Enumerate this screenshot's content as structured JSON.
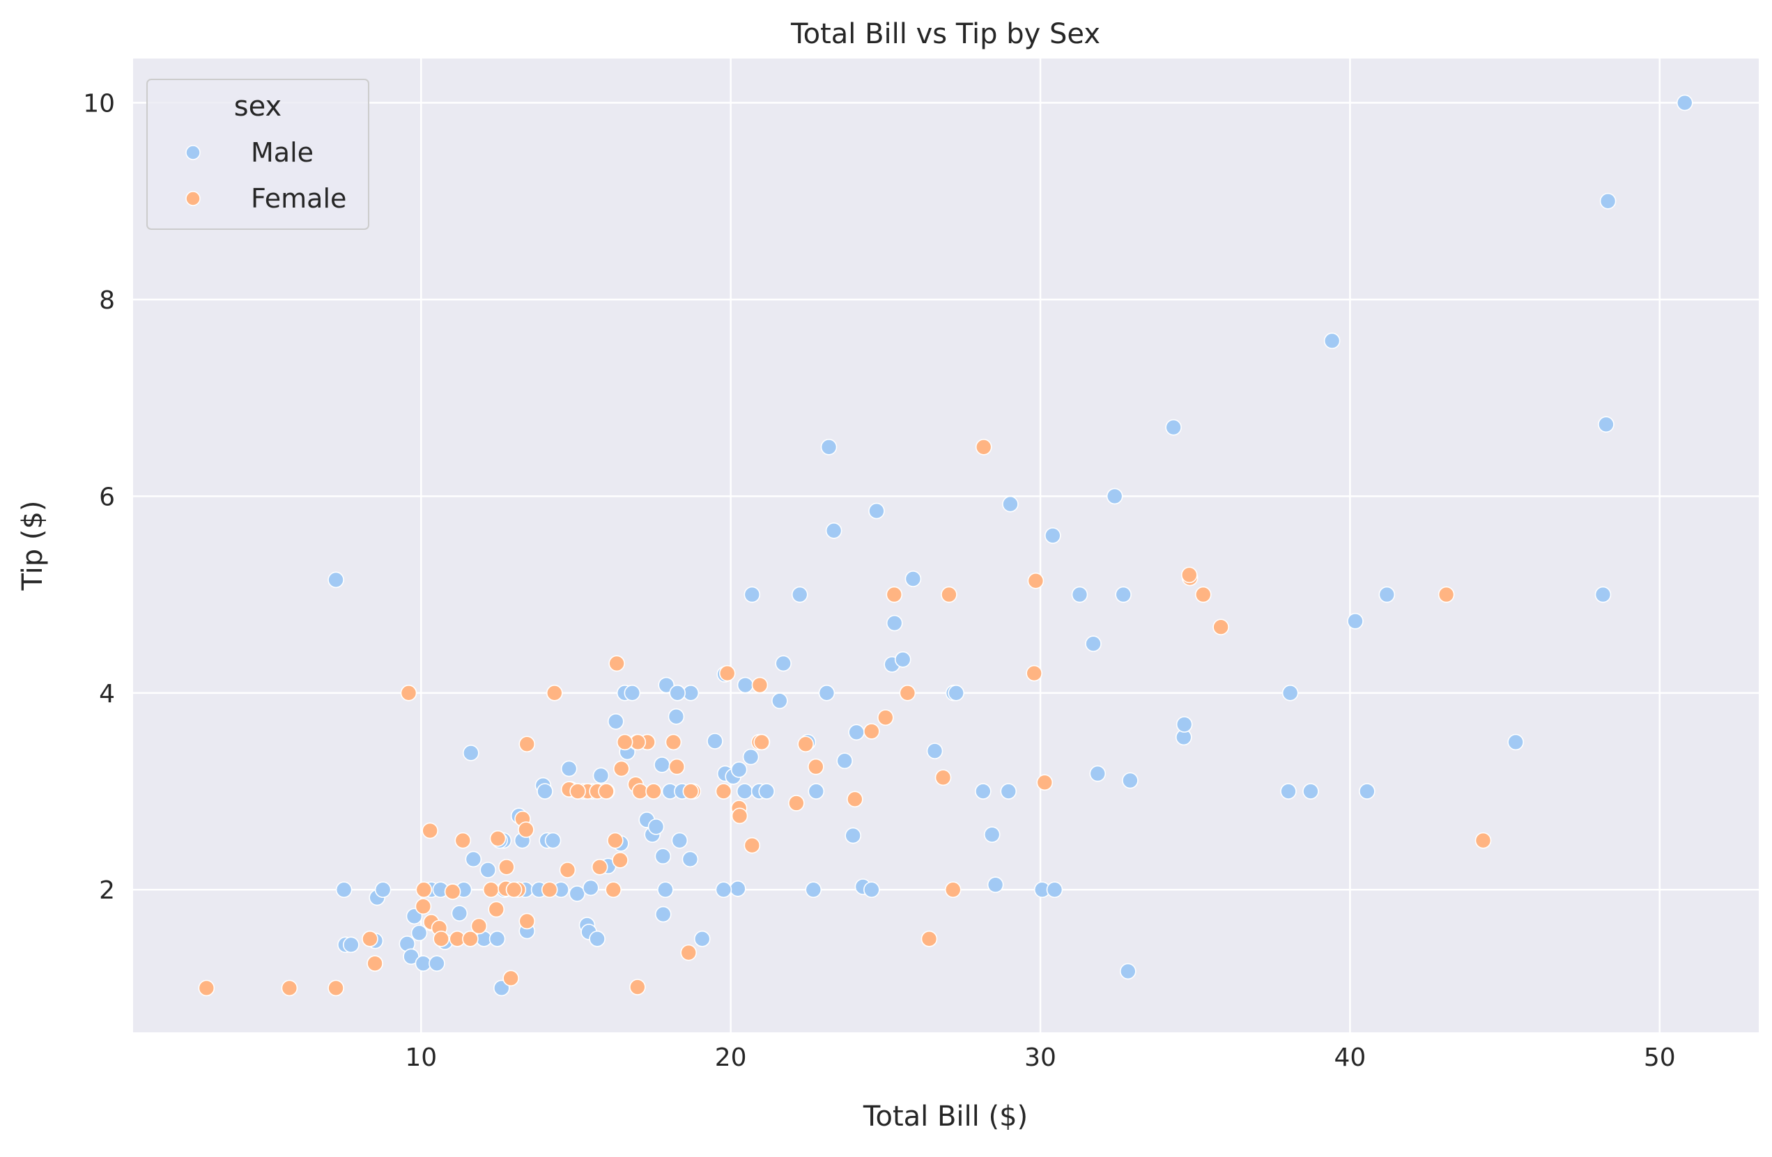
{
  "chart_data": {
    "type": "scatter",
    "title": "Total Bill vs Tip by Sex",
    "xlabel": "Total Bill ($)",
    "ylabel": "Tip ($)",
    "xlim": [
      0.7,
      53.2
    ],
    "ylim": [
      0.55,
      10.45
    ],
    "xticks": [
      10,
      20,
      30,
      40,
      50
    ],
    "yticks": [
      2,
      4,
      6,
      8,
      10
    ],
    "grid": true,
    "legend": {
      "title": "sex",
      "position": "top-left"
    },
    "colors": {
      "Male": "#a1c9f4",
      "Female": "#ffb482"
    },
    "series": [
      {
        "name": "Male",
        "points": [
          [
            7.25,
            5.15
          ],
          [
            7.51,
            2.0
          ],
          [
            7.56,
            1.44
          ],
          [
            7.74,
            1.44
          ],
          [
            8.51,
            1.25
          ],
          [
            8.52,
            1.48
          ],
          [
            8.58,
            1.92
          ],
          [
            8.77,
            2.0
          ],
          [
            9.55,
            1.45
          ],
          [
            9.68,
            1.32
          ],
          [
            9.78,
            1.73
          ],
          [
            9.94,
            1.56
          ],
          [
            10.07,
            1.25
          ],
          [
            10.33,
            2.0
          ],
          [
            10.34,
            1.66
          ],
          [
            10.51,
            1.25
          ],
          [
            10.63,
            2.0
          ],
          [
            10.77,
            1.47
          ],
          [
            11.02,
            1.98
          ],
          [
            11.24,
            1.76
          ],
          [
            11.61,
            3.39
          ],
          [
            11.69,
            2.31
          ],
          [
            12.03,
            1.5
          ],
          [
            12.16,
            2.2
          ],
          [
            12.46,
            1.5
          ],
          [
            12.6,
            1.0
          ],
          [
            12.66,
            2.5
          ],
          [
            12.69,
            2.0
          ],
          [
            13.16,
            2.75
          ],
          [
            13.37,
            2.0
          ],
          [
            13.42,
            1.58
          ],
          [
            13.81,
            2.0
          ],
          [
            13.94,
            3.06
          ],
          [
            14.0,
            3.0
          ],
          [
            14.07,
            2.5
          ],
          [
            14.26,
            2.5
          ],
          [
            14.52,
            2.0
          ],
          [
            14.78,
            3.23
          ],
          [
            15.04,
            1.96
          ],
          [
            15.06,
            3.0
          ],
          [
            15.36,
            1.64
          ],
          [
            15.42,
            1.57
          ],
          [
            15.48,
            2.02
          ],
          [
            15.53,
            3.0
          ],
          [
            15.69,
            1.5
          ],
          [
            15.77,
            2.23
          ],
          [
            15.81,
            3.16
          ],
          [
            16.0,
            3.0
          ],
          [
            16.04,
            2.24
          ],
          [
            16.29,
            3.71
          ],
          [
            16.58,
            4.0
          ],
          [
            16.66,
            3.4
          ],
          [
            16.82,
            4.0
          ],
          [
            17.29,
            2.71
          ],
          [
            17.47,
            2.56
          ],
          [
            17.59,
            2.64
          ],
          [
            17.78,
            3.27
          ],
          [
            17.81,
            2.34
          ],
          [
            17.82,
            1.75
          ],
          [
            17.89,
            2.0
          ],
          [
            17.92,
            4.08
          ],
          [
            18.04,
            3.0
          ],
          [
            18.24,
            3.76
          ],
          [
            18.29,
            4.0
          ],
          [
            18.35,
            2.5
          ],
          [
            18.43,
            3.0
          ],
          [
            18.69,
            2.31
          ],
          [
            18.71,
            4.0
          ],
          [
            19.08,
            1.5
          ],
          [
            19.49,
            3.51
          ],
          [
            19.81,
            4.19
          ],
          [
            19.82,
            3.18
          ],
          [
            20.08,
            3.15
          ],
          [
            20.23,
            2.01
          ],
          [
            20.27,
            3.22
          ],
          [
            20.45,
            3.0
          ],
          [
            20.65,
            3.35
          ],
          [
            20.69,
            5.0
          ],
          [
            20.92,
            3.0
          ],
          [
            21.01,
            3.5
          ],
          [
            21.16,
            3.0
          ],
          [
            21.58,
            3.92
          ],
          [
            21.7,
            4.3
          ],
          [
            22.23,
            5.0
          ],
          [
            22.49,
            3.5
          ],
          [
            22.67,
            2.0
          ],
          [
            22.76,
            3.0
          ],
          [
            23.1,
            4.0
          ],
          [
            23.17,
            6.5
          ],
          [
            23.33,
            5.65
          ],
          [
            23.68,
            3.31
          ],
          [
            23.95,
            2.55
          ],
          [
            24.06,
            3.6
          ],
          [
            24.27,
            2.03
          ],
          [
            24.55,
            2.0
          ],
          [
            24.71,
            5.85
          ],
          [
            25.21,
            4.29
          ],
          [
            25.29,
            4.71
          ],
          [
            25.56,
            4.34
          ],
          [
            25.89,
            5.16
          ],
          [
            26.59,
            3.41
          ],
          [
            27.2,
            4.0
          ],
          [
            27.28,
            4.0
          ],
          [
            28.15,
            3.0
          ],
          [
            28.44,
            2.56
          ],
          [
            28.55,
            2.05
          ],
          [
            28.97,
            3.0
          ],
          [
            29.03,
            5.92
          ],
          [
            30.06,
            2.0
          ],
          [
            30.4,
            5.6
          ],
          [
            30.46,
            2.0
          ],
          [
            31.27,
            5.0
          ],
          [
            31.71,
            4.5
          ],
          [
            31.85,
            3.18
          ],
          [
            32.4,
            6.0
          ],
          [
            32.68,
            5.0
          ],
          [
            32.83,
            1.17
          ],
          [
            32.9,
            3.11
          ],
          [
            34.3,
            6.7
          ],
          [
            34.63,
            3.55
          ],
          [
            34.65,
            3.68
          ],
          [
            38.01,
            3.0
          ],
          [
            38.07,
            4.0
          ],
          [
            38.73,
            3.0
          ],
          [
            39.42,
            7.58
          ],
          [
            40.17,
            4.73
          ],
          [
            40.55,
            3.0
          ],
          [
            41.19,
            5.0
          ],
          [
            45.35,
            3.5
          ],
          [
            48.17,
            5.0
          ],
          [
            48.27,
            6.73
          ],
          [
            48.33,
            9.0
          ],
          [
            50.81,
            10.0
          ],
          [
            14.31,
            4.0
          ],
          [
            16.97,
            3.5
          ],
          [
            17.31,
            3.5
          ],
          [
            9.6,
            4.0
          ],
          [
            13.27,
            2.5
          ],
          [
            18.28,
            4.0
          ],
          [
            19.77,
            2.0
          ],
          [
            20.47,
            4.08
          ],
          [
            12.54,
            2.5
          ],
          [
            11.38,
            2.0
          ],
          [
            16.45,
            2.47
          ]
        ]
      },
      {
        "name": "Female",
        "points": [
          [
            3.07,
            1.0
          ],
          [
            5.75,
            1.0
          ],
          [
            7.25,
            1.0
          ],
          [
            8.35,
            1.5
          ],
          [
            8.51,
            1.25
          ],
          [
            9.6,
            4.0
          ],
          [
            10.07,
            1.83
          ],
          [
            10.09,
            2.0
          ],
          [
            10.29,
            2.6
          ],
          [
            10.33,
            1.67
          ],
          [
            10.59,
            1.61
          ],
          [
            10.65,
            1.5
          ],
          [
            11.17,
            1.5
          ],
          [
            11.35,
            2.5
          ],
          [
            11.59,
            1.5
          ],
          [
            11.87,
            1.63
          ],
          [
            12.26,
            2.0
          ],
          [
            12.43,
            1.8
          ],
          [
            12.48,
            2.52
          ],
          [
            12.74,
            2.01
          ],
          [
            12.76,
            2.23
          ],
          [
            12.9,
            1.1
          ],
          [
            13.0,
            2.0
          ],
          [
            13.13,
            2.0
          ],
          [
            13.28,
            2.72
          ],
          [
            13.39,
            2.61
          ],
          [
            13.42,
            3.48
          ],
          [
            13.42,
            1.68
          ],
          [
            14.15,
            2.0
          ],
          [
            14.31,
            4.0
          ],
          [
            14.73,
            2.2
          ],
          [
            14.83,
            3.02
          ],
          [
            15.25,
            3.0
          ],
          [
            15.38,
            3.0
          ],
          [
            15.69,
            3.0
          ],
          [
            15.77,
            2.23
          ],
          [
            15.98,
            3.0
          ],
          [
            16.21,
            2.0
          ],
          [
            16.27,
            2.5
          ],
          [
            16.32,
            4.3
          ],
          [
            16.43,
            2.3
          ],
          [
            16.47,
            3.23
          ],
          [
            16.93,
            3.07
          ],
          [
            17.07,
            3.0
          ],
          [
            17.31,
            3.5
          ],
          [
            17.51,
            3.0
          ],
          [
            18.15,
            3.5
          ],
          [
            18.26,
            3.25
          ],
          [
            18.64,
            1.36
          ],
          [
            18.78,
            3.0
          ],
          [
            19.77,
            3.0
          ],
          [
            19.89,
            4.2
          ],
          [
            20.27,
            2.83
          ],
          [
            20.29,
            2.75
          ],
          [
            20.69,
            2.45
          ],
          [
            20.92,
            3.5
          ],
          [
            22.12,
            2.88
          ],
          [
            22.42,
            3.48
          ],
          [
            22.75,
            3.25
          ],
          [
            24.01,
            2.92
          ],
          [
            24.55,
            3.61
          ],
          [
            25.0,
            3.75
          ],
          [
            25.28,
            5.0
          ],
          [
            25.71,
            4.0
          ],
          [
            26.41,
            1.5
          ],
          [
            26.86,
            3.14
          ],
          [
            27.05,
            5.0
          ],
          [
            27.18,
            2.0
          ],
          [
            28.17,
            6.5
          ],
          [
            29.85,
            5.14
          ],
          [
            29.8,
            4.2
          ],
          [
            30.14,
            3.09
          ],
          [
            34.83,
            5.17
          ],
          [
            35.26,
            5.0
          ],
          [
            35.83,
            4.67
          ],
          [
            43.11,
            5.0
          ],
          [
            44.3,
            2.5
          ],
          [
            34.81,
            5.2
          ],
          [
            11.02,
            1.98
          ],
          [
            16.99,
            1.01
          ],
          [
            14.78,
            3.02
          ],
          [
            15.06,
            3.0
          ],
          [
            18.71,
            3.0
          ],
          [
            17.0,
            3.5
          ],
          [
            20.94,
            4.08
          ],
          [
            16.58,
            3.5
          ],
          [
            21.0,
            3.5
          ],
          [
            13.0,
            2.0
          ]
        ]
      }
    ]
  }
}
